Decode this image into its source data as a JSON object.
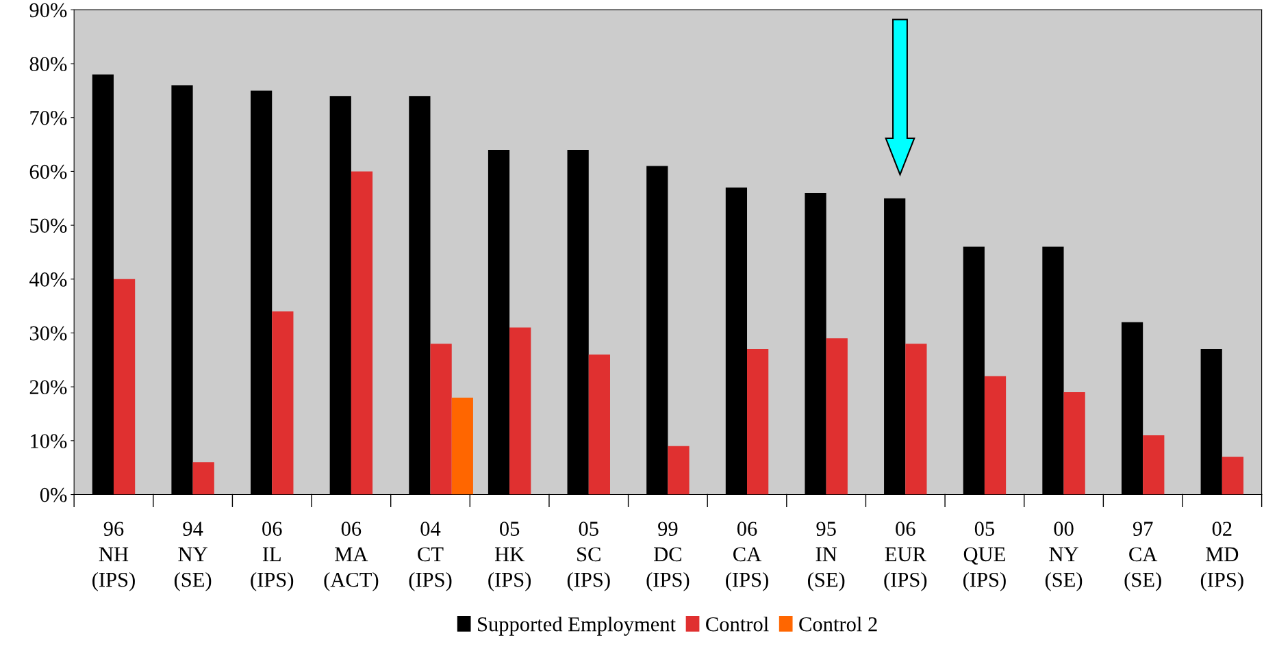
{
  "chart_data": {
    "type": "bar",
    "categories": [
      "96\nNH\n(IPS)",
      "94\nNY\n(SE)",
      "06\nIL\n(IPS)",
      "06\nMA\n(ACT)",
      "04\nCT\n(IPS)",
      "05\nHK\n(IPS)",
      "05\nSC\n(IPS)",
      "99\nDC\n(IPS)",
      "06\nCA\n(IPS)",
      "95\nIN\n(SE)",
      "06\nEUR\n(IPS)",
      "05\nQUE\n(IPS)",
      "00\nNY\n(SE)",
      "97\nCA\n(SE)",
      "02\nMD\n(IPS)"
    ],
    "series": [
      {
        "name": "Supported Employment",
        "color": "#000000",
        "values": [
          78,
          76,
          75,
          74,
          74,
          64,
          64,
          61,
          57,
          56,
          55,
          46,
          46,
          32,
          27
        ]
      },
      {
        "name": "Control",
        "color": "#e03030",
        "values": [
          40,
          6,
          34,
          60,
          28,
          31,
          26,
          9,
          27,
          29,
          28,
          22,
          19,
          11,
          7
        ]
      },
      {
        "name": "Control 2",
        "color": "#ff6600",
        "values": [
          null,
          null,
          null,
          null,
          18,
          null,
          null,
          null,
          null,
          null,
          null,
          null,
          null,
          null,
          null
        ]
      }
    ],
    "ylim": [
      0,
      90
    ],
    "yticks": [
      {
        "value": 0,
        "label": "0%"
      },
      {
        "value": 10,
        "label": "10%"
      },
      {
        "value": 20,
        "label": "20%"
      },
      {
        "value": 30,
        "label": "30%"
      },
      {
        "value": 40,
        "label": "40%"
      },
      {
        "value": 50,
        "label": "50%"
      },
      {
        "value": 60,
        "label": "60%"
      },
      {
        "value": 70,
        "label": "70%"
      },
      {
        "value": 80,
        "label": "80%"
      },
      {
        "value": 90,
        "label": "90%"
      }
    ],
    "grid": false,
    "legend": "bottom"
  }
}
